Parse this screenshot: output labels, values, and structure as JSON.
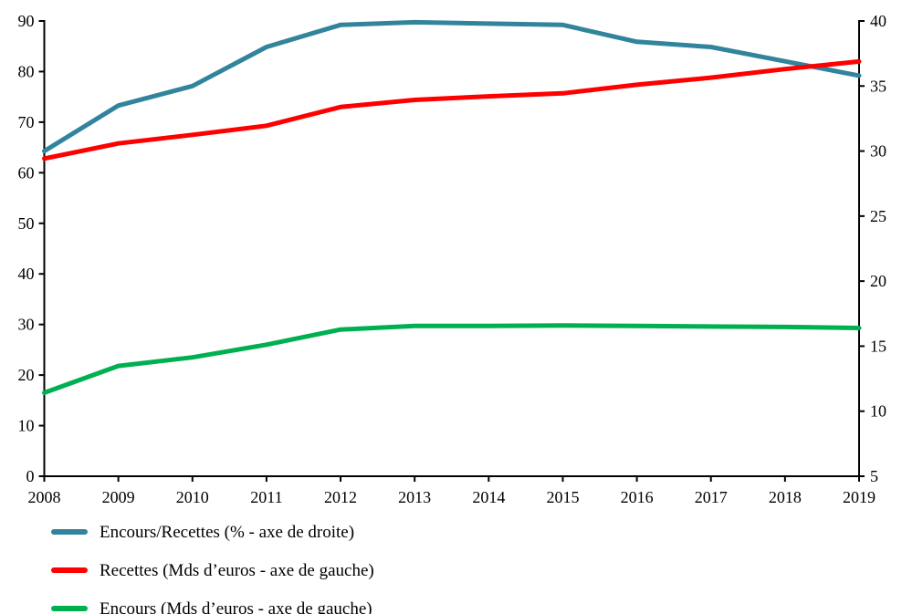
{
  "chart_data": {
    "type": "line",
    "title": "",
    "grid": false,
    "legend_position": "bottom-left",
    "x": [
      2008,
      2009,
      2010,
      2011,
      2012,
      2013,
      2014,
      2015,
      2016,
      2017,
      2018,
      2019
    ],
    "x_tick_labels": [
      "2008",
      "2009",
      "2010",
      "2011",
      "2012",
      "2013",
      "2014",
      "2015",
      "2016",
      "2017",
      "2018",
      "2019"
    ],
    "left_axis": {
      "min": 0,
      "max": 90,
      "ticks": [
        0,
        10,
        20,
        30,
        40,
        50,
        60,
        70,
        80,
        90
      ]
    },
    "right_axis": {
      "min": 5,
      "max": 40,
      "ticks": [
        5,
        10,
        15,
        20,
        25,
        30,
        35,
        40
      ]
    },
    "series": [
      {
        "key": "encours-recettes-ratio",
        "name": "Encours/Recettes (% - axe de droite)",
        "axis": "right",
        "color": "#31849B",
        "values": [
          30.0,
          33.5,
          35.0,
          38.0,
          39.7,
          39.9,
          39.8,
          39.7,
          38.4,
          38.0,
          36.9,
          35.8
        ]
      },
      {
        "key": "recettes",
        "name": "Recettes (Mds d’euros - axe de gauche)",
        "axis": "left",
        "color": "#FF0000",
        "values": [
          62.8,
          65.8,
          67.5,
          69.3,
          73.0,
          74.4,
          75.1,
          75.7,
          77.4,
          78.8,
          80.5,
          82.0
        ]
      },
      {
        "key": "encours",
        "name": "Encours (Mds d’euros - axe de gauche)",
        "axis": "left",
        "color": "#00B050",
        "values": [
          16.5,
          21.8,
          23.5,
          26.0,
          29.0,
          29.7,
          29.7,
          29.8,
          29.7,
          29.6,
          29.5,
          29.3
        ]
      }
    ]
  },
  "legend": {
    "items": [
      {
        "label": "Encours/Recettes (% - axe de droite)"
      },
      {
        "label": "Recettes (Mds d’euros - axe de gauche)"
      },
      {
        "label": "Encours (Mds d’euros - axe de gauche)"
      }
    ]
  },
  "colors": {
    "ratio_line": "#31849B",
    "recettes_line": "#FF0000",
    "encours_line": "#00B050",
    "axis": "#000000",
    "background": "#FFFFFF"
  }
}
